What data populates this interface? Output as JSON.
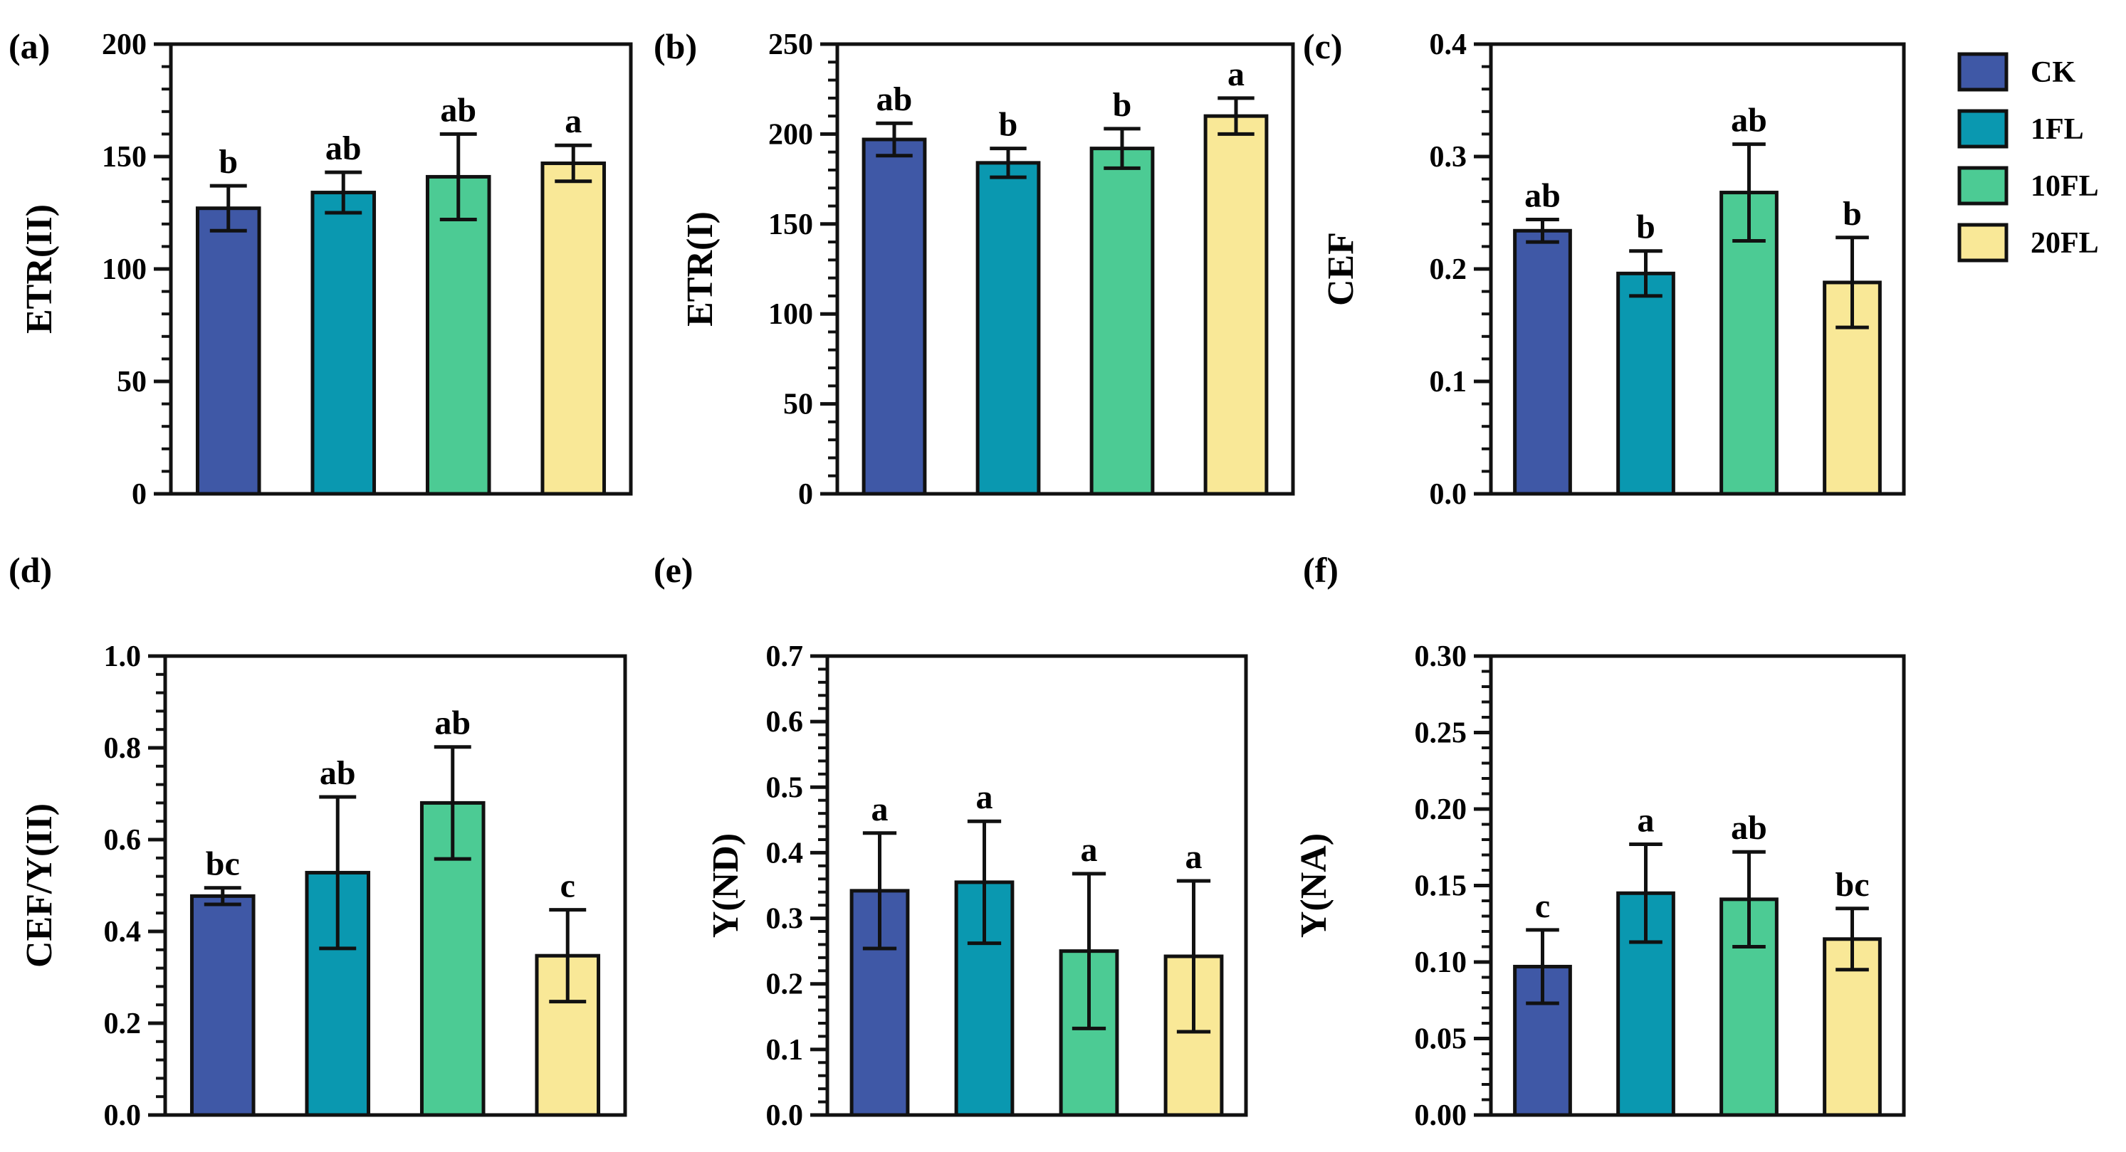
{
  "legend": {
    "items": [
      {
        "name": "CK",
        "color": "#3F58A6"
      },
      {
        "name": "1FL",
        "color": "#0A98B0"
      },
      {
        "name": "10FL",
        "color": "#4CCB94"
      },
      {
        "name": "20FL",
        "color": "#F9E897"
      }
    ]
  },
  "chart_data": [
    {
      "type": "bar",
      "panel_label": "(a)",
      "ylabel": "ETR(II)",
      "ylim": [
        0,
        200
      ],
      "yticks": [
        "0",
        "50",
        "100",
        "150",
        "200"
      ],
      "minor_ticks": 4,
      "categories": [
        "CK",
        "1FL",
        "10FL",
        "20FL"
      ],
      "values": [
        127,
        134,
        141,
        147
      ],
      "errors": [
        10,
        9,
        19,
        8
      ],
      "labels": [
        "b",
        "ab",
        "ab",
        "a"
      ]
    },
    {
      "type": "bar",
      "panel_label": "(b)",
      "ylabel": "ETR(I)",
      "ylim": [
        0,
        250
      ],
      "yticks": [
        "0",
        "50",
        "100",
        "150",
        "200",
        "250"
      ],
      "minor_ticks": 4,
      "categories": [
        "CK",
        "1FL",
        "10FL",
        "20FL"
      ],
      "values": [
        197,
        184,
        192,
        210
      ],
      "errors": [
        9,
        8,
        11,
        10
      ],
      "labels": [
        "ab",
        "b",
        "b",
        "a"
      ]
    },
    {
      "type": "bar",
      "panel_label": "(c)",
      "ylabel": "CEF",
      "ylim": [
        0,
        0.4
      ],
      "yticks": [
        "0.0",
        "0.1",
        "0.2",
        "0.3",
        "0.4"
      ],
      "minor_ticks": 4,
      "categories": [
        "CK",
        "1FL",
        "10FL",
        "20FL"
      ],
      "values": [
        0.234,
        0.196,
        0.268,
        0.188
      ],
      "errors": [
        0.01,
        0.02,
        0.043,
        0.04
      ],
      "labels": [
        "ab",
        "b",
        "ab",
        "b"
      ]
    },
    {
      "type": "bar",
      "panel_label": "(d)",
      "ylabel": "CEF/Y(II)",
      "ylim": [
        0,
        1.0
      ],
      "yticks": [
        "0.0",
        "0.2",
        "0.4",
        "0.6",
        "0.8",
        "1.0"
      ],
      "minor_ticks": 4,
      "categories": [
        "CK",
        "1FL",
        "10FL",
        "20FL"
      ],
      "values": [
        0.477,
        0.528,
        0.68,
        0.347
      ],
      "errors": [
        0.018,
        0.165,
        0.122,
        0.1
      ],
      "labels": [
        "bc",
        "ab",
        "ab",
        "c"
      ]
    },
    {
      "type": "bar",
      "panel_label": "(e)",
      "ylabel": "Y(ND)",
      "ylim": [
        0,
        0.7
      ],
      "yticks": [
        "0.0",
        "0.1",
        "0.2",
        "0.3",
        "0.4",
        "0.5",
        "0.6",
        "0.7"
      ],
      "minor_ticks": 4,
      "categories": [
        "CK",
        "1FL",
        "10FL",
        "20FL"
      ],
      "values": [
        0.342,
        0.355,
        0.25,
        0.242
      ],
      "errors": [
        0.088,
        0.093,
        0.118,
        0.115
      ],
      "labels": [
        "a",
        "a",
        "a",
        "a"
      ]
    },
    {
      "type": "bar",
      "panel_label": "(f)",
      "ylabel": "Y(NA)",
      "ylim": [
        0,
        0.3
      ],
      "yticks": [
        "0.00",
        "0.05",
        "0.10",
        "0.15",
        "0.20",
        "0.25",
        "0.30"
      ],
      "minor_ticks": 4,
      "categories": [
        "CK",
        "1FL",
        "10FL",
        "20FL"
      ],
      "values": [
        0.097,
        0.145,
        0.141,
        0.115
      ],
      "errors": [
        0.024,
        0.032,
        0.031,
        0.02
      ],
      "labels": [
        "c",
        "a",
        "ab",
        "bc"
      ]
    }
  ]
}
